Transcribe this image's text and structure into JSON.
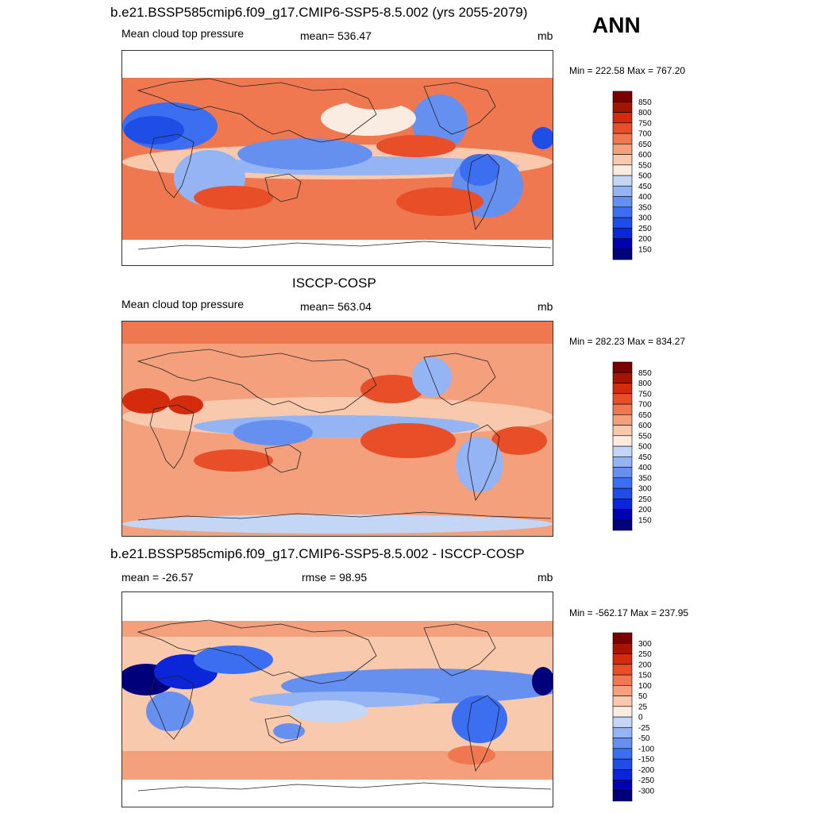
{
  "season": "ANN",
  "chart_data": [
    {
      "type": "heatmap",
      "title": "b.e21.BSSP585cmip6.f09_g17.CMIP6-SSP5-8.5.002 (yrs 2055-2079)",
      "left_label": "Mean cloud top pressure",
      "center_label": "mean= 536.47",
      "units": "mb",
      "minmax": "Min = 222.58 Max = 767.20",
      "mean": 536.47,
      "min": 222.58,
      "max": 767.2,
      "colorbar_levels": [
        "150",
        "200",
        "250",
        "300",
        "350",
        "400",
        "450",
        "500",
        "550",
        "600",
        "650",
        "700",
        "750",
        "800",
        "850"
      ],
      "colorbar_colors": [
        "#00007a",
        "#0000b0",
        "#0a26d8",
        "#1f4ee6",
        "#3b6ef0",
        "#6690f0",
        "#95b4f3",
        "#c4d6f6",
        "#fbece1",
        "#f9c9ad",
        "#f5a07c",
        "#f07850",
        "#e84f28",
        "#d32b0c",
        "#a61400",
        "#7a0000"
      ]
    },
    {
      "type": "heatmap",
      "title": "ISCCP-COSP",
      "left_label": "Mean cloud top pressure",
      "center_label": "mean= 563.04",
      "units": "mb",
      "minmax": "Min = 282.23 Max = 834.27",
      "mean": 563.04,
      "min": 282.23,
      "max": 834.27,
      "colorbar_levels": [
        "150",
        "200",
        "250",
        "300",
        "350",
        "400",
        "450",
        "500",
        "550",
        "600",
        "650",
        "700",
        "750",
        "800",
        "850"
      ],
      "colorbar_colors": [
        "#00007a",
        "#0000b0",
        "#0a26d8",
        "#1f4ee6",
        "#3b6ef0",
        "#6690f0",
        "#95b4f3",
        "#c4d6f6",
        "#fbece1",
        "#f9c9ad",
        "#f5a07c",
        "#f07850",
        "#e84f28",
        "#d32b0c",
        "#a61400",
        "#7a0000"
      ]
    },
    {
      "type": "heatmap",
      "title": "b.e21.BSSP585cmip6.f09_g17.CMIP6-SSP5-8.5.002 - ISCCP-COSP",
      "left_label": "mean = -26.57",
      "center_label": "rmse =  98.95",
      "units": "mb",
      "minmax": "Min = -562.17 Max = 237.95",
      "mean": -26.57,
      "rmse": 98.95,
      "min": -562.17,
      "max": 237.95,
      "colorbar_levels": [
        "-300",
        "-250",
        "-200",
        "-150",
        "-100",
        "-50",
        "-25",
        "0",
        "25",
        "50",
        "100",
        "150",
        "200",
        "250",
        "300"
      ],
      "colorbar_colors": [
        "#00007a",
        "#0000b0",
        "#0a26d8",
        "#1f4ee6",
        "#3b6ef0",
        "#6690f0",
        "#95b4f3",
        "#c4d6f6",
        "#fbece1",
        "#f9c9ad",
        "#f5a07c",
        "#f07850",
        "#e84f28",
        "#d32b0c",
        "#a61400",
        "#7a0000"
      ]
    }
  ]
}
